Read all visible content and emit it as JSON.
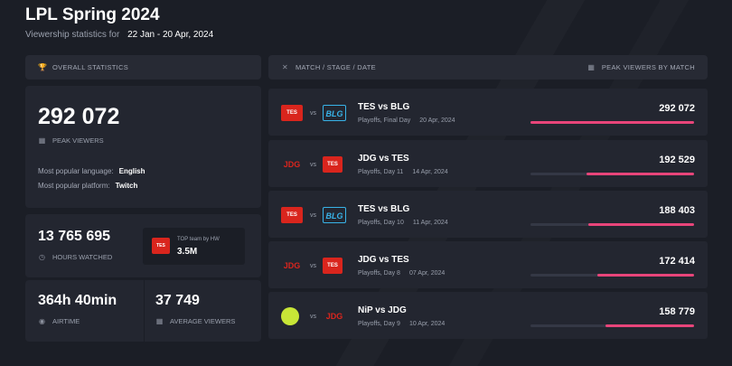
{
  "header": {
    "title": "LPL Spring 2024",
    "subtitle_prefix": "Viewership statistics for",
    "date_range": "22 Jan - 20 Apr, 2024"
  },
  "overall": {
    "heading": "OVERALL STATISTICS",
    "peak_viewers": "292 072",
    "peak_label": "PEAK VIEWERS",
    "language_label": "Most popular language:",
    "language_value": "English",
    "platform_label": "Most popular platform:",
    "platform_value": "Twitch",
    "hours_watched": "13 765 695",
    "hours_label": "HOURS WATCHED",
    "top_team_label": "TOP team by HW",
    "top_team_value": "3.5M",
    "airtime": "364h 40min",
    "airtime_label": "AIRTIME",
    "avg_viewers": "37 749",
    "avg_label": "AVERAGE VIEWERS"
  },
  "matches_panel": {
    "heading_left": "MATCH / STAGE / DATE",
    "heading_right": "PEAK VIEWERS BY MATCH"
  },
  "matches": [
    {
      "team1": "TES",
      "team2": "BLG",
      "title": "TES vs BLG",
      "stage": "Playoffs, Final Day",
      "date": "20 Apr, 2024",
      "viewers": "292 072",
      "ratio": 1.0
    },
    {
      "team1": "JDG",
      "team2": "TES",
      "title": "JDG vs TES",
      "stage": "Playoffs, Day 11",
      "date": "14 Apr, 2024",
      "viewers": "192 529",
      "ratio": 0.659
    },
    {
      "team1": "TES",
      "team2": "BLG",
      "title": "TES vs BLG",
      "stage": "Playoffs, Day 10",
      "date": "11 Apr, 2024",
      "viewers": "188 403",
      "ratio": 0.645
    },
    {
      "team1": "JDG",
      "team2": "TES",
      "title": "JDG vs TES",
      "stage": "Playoffs, Day 8",
      "date": "07 Apr, 2024",
      "viewers": "172 414",
      "ratio": 0.59
    },
    {
      "team1": "NiP",
      "team2": "JDG",
      "title": "NiP vs JDG",
      "stage": "Playoffs, Day 9",
      "date": "10 Apr, 2024",
      "viewers": "158 779",
      "ratio": 0.544
    }
  ],
  "logos": {
    "TES": "TES",
    "JDG": "JDG",
    "BLG": "BLG",
    "NiP": ""
  },
  "vs_text": "vs",
  "colors": {
    "accent": "#e8457a",
    "bg": "#1b1e26",
    "panel": "#232630"
  }
}
